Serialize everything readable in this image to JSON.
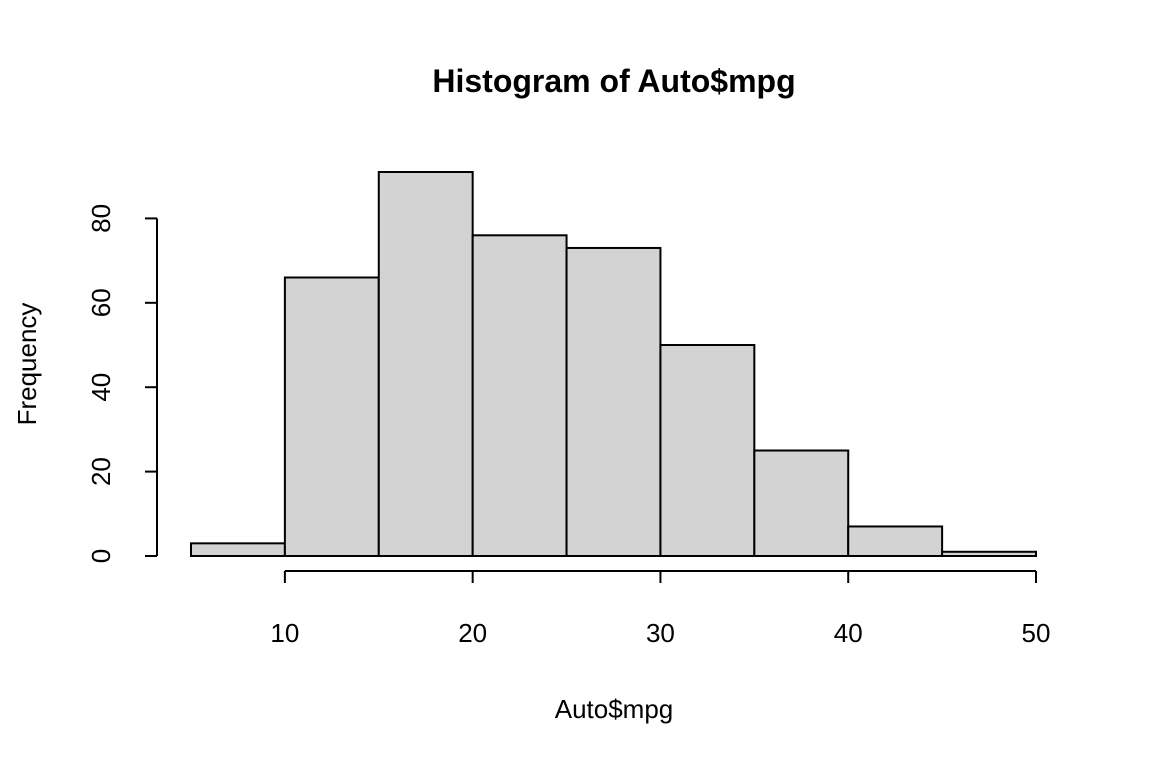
{
  "chart_data": {
    "type": "bar",
    "title": "Histogram of Auto$mpg",
    "xlabel": "Auto$mpg",
    "ylabel": "Frequency",
    "bins": [
      {
        "start": 5,
        "end": 10,
        "count": 3
      },
      {
        "start": 10,
        "end": 15,
        "count": 66
      },
      {
        "start": 15,
        "end": 20,
        "count": 91
      },
      {
        "start": 20,
        "end": 25,
        "count": 76
      },
      {
        "start": 25,
        "end": 30,
        "count": 73
      },
      {
        "start": 30,
        "end": 35,
        "count": 50
      },
      {
        "start": 35,
        "end": 40,
        "count": 25
      },
      {
        "start": 40,
        "end": 45,
        "count": 7
      },
      {
        "start": 45,
        "end": 50,
        "count": 1
      }
    ],
    "xlim": [
      5,
      50
    ],
    "ylim": [
      0,
      91
    ],
    "x_ticks": [
      10,
      20,
      30,
      40,
      50
    ],
    "y_ticks": [
      0,
      20,
      40,
      60,
      80
    ],
    "grid": false,
    "bar_color": "#d3d3d3"
  }
}
